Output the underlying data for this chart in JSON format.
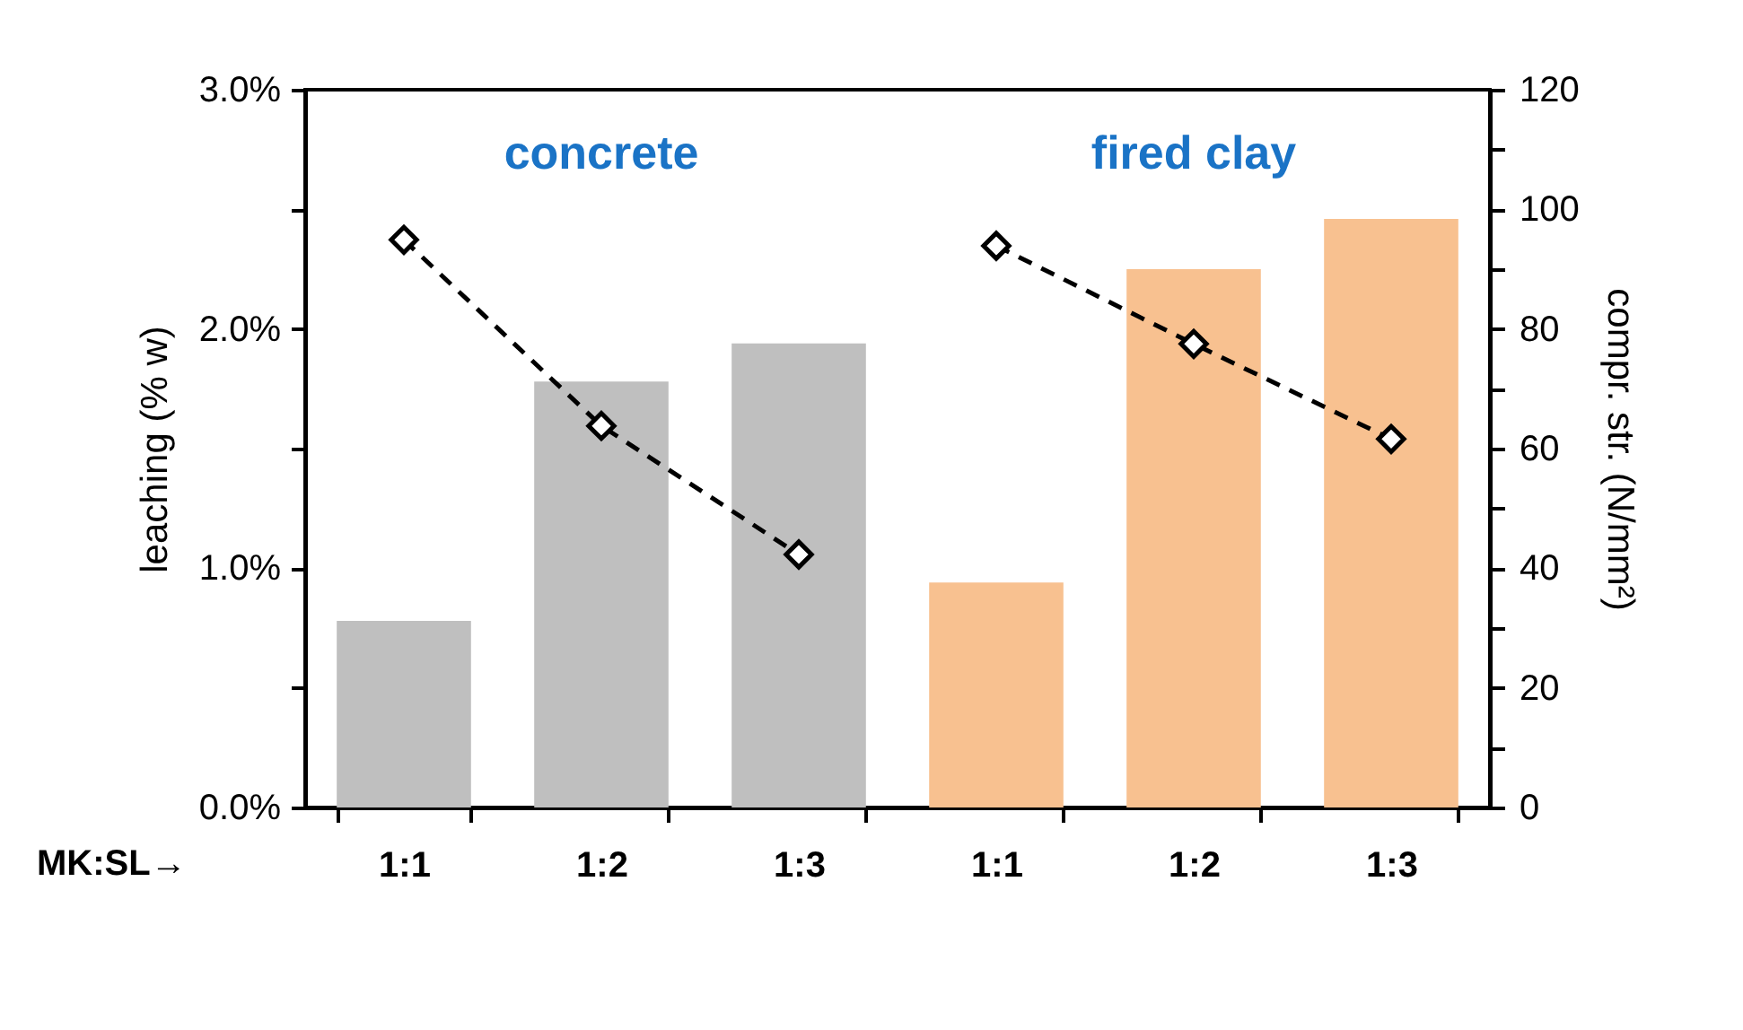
{
  "chart_data": {
    "type": "bar",
    "categories": [
      "1:1",
      "1:2",
      "1:3",
      "1:1",
      "1:2",
      "1:3"
    ],
    "xlabel": "MK:SL→",
    "ylabel": "leaching (% w)",
    "y2label": "compr. str. (N/mm²)",
    "annotations": [
      "concrete",
      "fired clay"
    ],
    "series": [
      {
        "colors": [
          "#bfbfbf",
          "#bfbfbf",
          "#bfbfbf",
          "#f8c190",
          "#f8c190",
          "#f8c190"
        ],
        "values": [
          0.78,
          1.78,
          1.94,
          0.94,
          2.25,
          2.46
        ]
      },
      {
        "type": "line",
        "axis": "y2",
        "color": "#000000",
        "marker": "diamond",
        "line_style": "dashed",
        "values": [
          94.9,
          63.8,
          42.3,
          null,
          null,
          null
        ]
      },
      {
        "type": "line",
        "axis": "y2",
        "color": "#000000",
        "marker": "diamond",
        "line_style": "dashed",
        "values": [
          null,
          null,
          null,
          93.9,
          77.5,
          61.6
        ]
      }
    ],
    "ylim": [
      0,
      3
    ],
    "yticks": [
      {
        "value": 0,
        "label": "0.0%"
      },
      {
        "value": 0.5,
        "label": null
      },
      {
        "value": 1,
        "label": "1.0%"
      },
      {
        "value": 1.5,
        "label": null
      },
      {
        "value": 2,
        "label": "2.0%"
      },
      {
        "value": 2.5,
        "label": null
      },
      {
        "value": 3,
        "label": "3.0%"
      }
    ],
    "y2lim": [
      0,
      120
    ],
    "y2ticks": [
      0,
      {
        "value": 10,
        "label": null
      },
      20,
      {
        "value": 30,
        "label": null
      },
      40,
      {
        "value": 50,
        "label": null
      },
      60,
      {
        "value": 70,
        "label": null
      },
      80,
      {
        "value": 90,
        "label": null
      },
      100,
      {
        "value": 110,
        "label": null
      },
      120
    ],
    "grid": false
  }
}
